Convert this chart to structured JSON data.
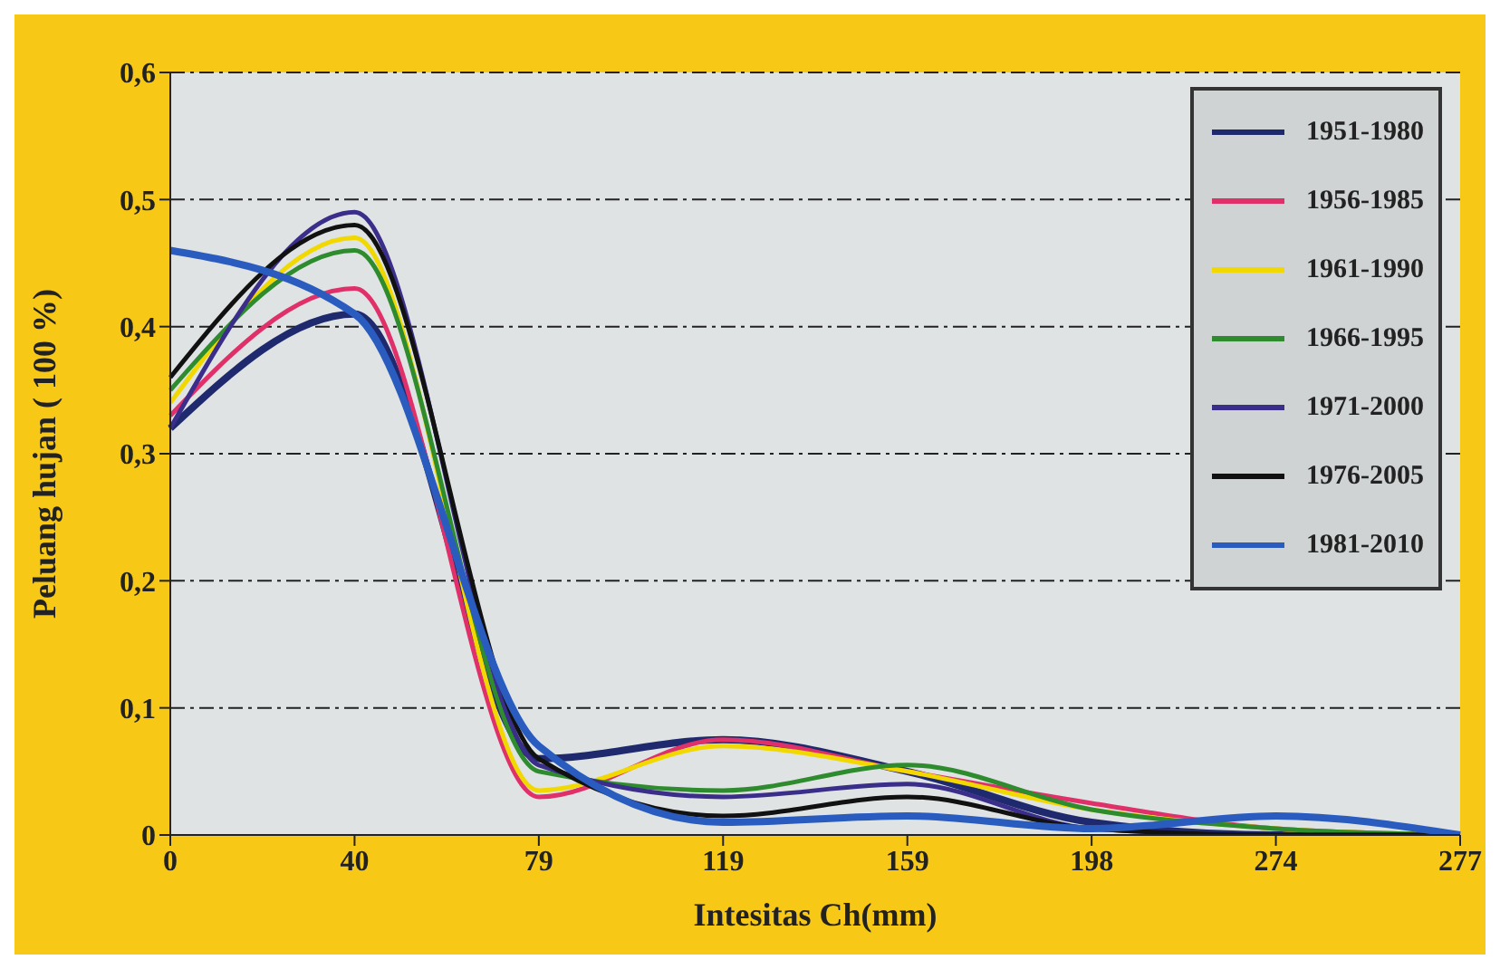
{
  "chart_data": {
    "type": "line",
    "xlabel": "Intesitas Ch(mm)",
    "ylabel": "Peluang hujan ( 100 %)",
    "categories": [
      "0",
      "40",
      "79",
      "119",
      "159",
      "198",
      "274",
      "277"
    ],
    "ylim": [
      0,
      0.6
    ],
    "yticks": [
      0,
      {
        "value": 0.1,
        "label": "0,1"
      },
      {
        "value": 0.2,
        "label": "0,2"
      },
      {
        "value": 0.3,
        "label": "0,3"
      },
      {
        "value": 0.4,
        "label": "0,4"
      },
      {
        "value": 0.5,
        "label": "0,5"
      },
      {
        "value": 0.6,
        "label": "0,6"
      }
    ],
    "grid": "y",
    "legend": "top right",
    "marker": "none",
    "line_style": "solid",
    "series": [
      {
        "name": "1951-1980",
        "color": "#1f2a6e",
        "values": [
          0.32,
          0.41,
          0.06,
          0.075,
          0.05,
          0.01,
          0,
          0
        ]
      },
      {
        "name": "1956-1985",
        "color": "#e0306a",
        "values": [
          0.33,
          0.43,
          0.03,
          0.075,
          0.05,
          0.025,
          0.005,
          0
        ]
      },
      {
        "name": "1961-1990",
        "color": "#f0d800",
        "values": [
          0.34,
          0.47,
          0.035,
          0.07,
          0.05,
          0.02,
          0.005,
          0
        ]
      },
      {
        "name": "1966-1995",
        "color": "#2e8b2e",
        "values": [
          0.35,
          0.46,
          0.05,
          0.035,
          0.055,
          0.02,
          0.005,
          0
        ]
      },
      {
        "name": "1971-2000",
        "color": "#3a2e8a",
        "values": [
          0.32,
          0.49,
          0.055,
          0.03,
          0.04,
          0.005,
          0,
          0
        ]
      },
      {
        "name": "1976-2005",
        "color": "#111111",
        "values": [
          0.36,
          0.48,
          0.06,
          0.015,
          0.03,
          0.005,
          0,
          0
        ]
      },
      {
        "name": "1981-2010",
        "color": "#2a5cc0",
        "values": [
          0.46,
          0.41,
          0.07,
          0.01,
          0.015,
          0.005,
          0.015,
          0
        ]
      }
    ]
  }
}
